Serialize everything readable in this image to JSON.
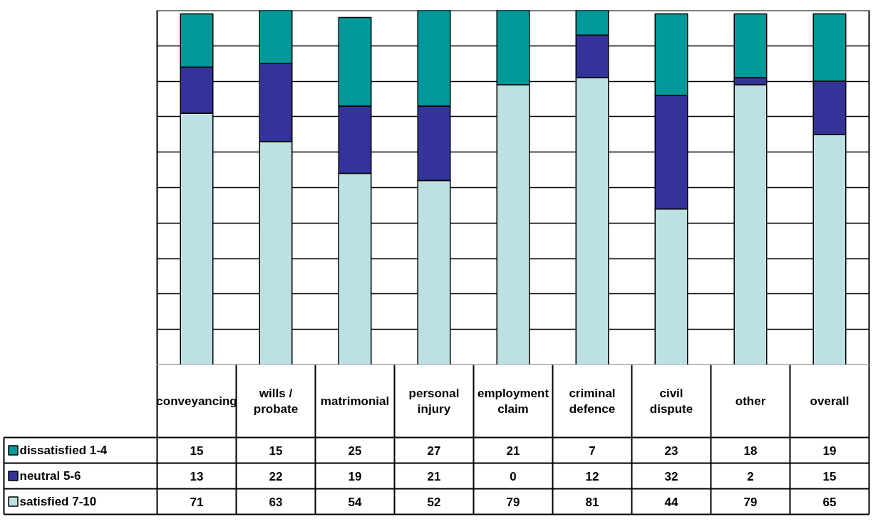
{
  "chart_data": {
    "type": "bar",
    "stacked": true,
    "categories": [
      "conveyancing",
      "wills / probate",
      "matrimonial",
      "personal injury",
      "employment claim",
      "criminal defence",
      "civil dispute",
      "other",
      "overall"
    ],
    "series": [
      {
        "name": "satisfied 7-10",
        "color": "#bde1e3",
        "values": [
          71,
          63,
          54,
          52,
          79,
          81,
          44,
          79,
          65
        ]
      },
      {
        "name": "neutral 5-6",
        "color": "#333399",
        "values": [
          13,
          22,
          19,
          21,
          0,
          12,
          32,
          2,
          15
        ]
      },
      {
        "name": "dissatisfied 1-4",
        "color": "#009999",
        "values": [
          15,
          15,
          25,
          27,
          21,
          7,
          23,
          18,
          19
        ]
      }
    ],
    "ylim": [
      0,
      100
    ],
    "grid": "y",
    "tick_labels": "x",
    "data_labels": true,
    "legend": "bottom left"
  }
}
